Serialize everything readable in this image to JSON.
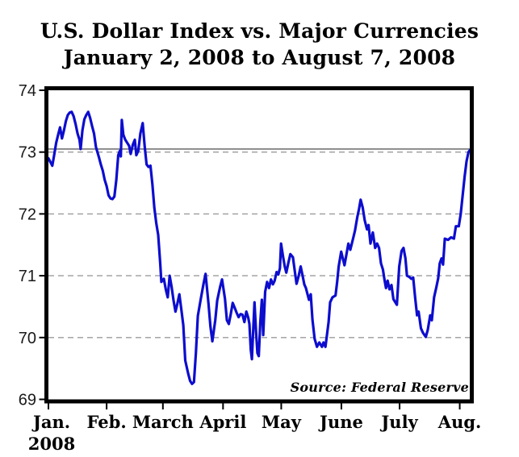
{
  "title": {
    "line1": "U.S. Dollar Index vs. Major Currencies",
    "line2": "January 2, 2008 to August 7, 2008"
  },
  "chart_data": {
    "type": "line",
    "title": "U.S. Dollar Index vs. Major Currencies",
    "subtitle": "January 2, 2008 to August 7, 2008",
    "source_note": "Source: Federal Reserve",
    "legend": "none",
    "grid": "dashed horizontal gridlines at integer values, solid gray reference line at 73.05",
    "x_axis": {
      "unit": "days from 2008-01-02",
      "start_date": "2008-01-02",
      "end_date": "2008-08-07",
      "total_days": 218,
      "tick_labels": [
        "Jan.",
        "Feb.",
        "March",
        "April",
        "May",
        "June",
        "July",
        "Aug."
      ],
      "tick_days": [
        0,
        30,
        59,
        90,
        120,
        151,
        181,
        212
      ],
      "year_label": "2008"
    },
    "y_axis": {
      "ticks": [
        69,
        70,
        71,
        72,
        73,
        74
      ],
      "range": [
        69,
        74
      ]
    },
    "gridlines": {
      "dashed_at": [
        70,
        71,
        72,
        73
      ],
      "dashed_color": "#9b9b9b",
      "solid_reference_value": 73.05,
      "solid_color": "#7f7f7f"
    },
    "colors": {
      "line": "#0d0dce",
      "border": "#000000",
      "background": "#ffffff"
    },
    "series": [
      {
        "name": "U.S. Dollar Index (major currencies)",
        "color": "#0d0dce",
        "points": [
          [
            0,
            72.9
          ],
          [
            1,
            72.84
          ],
          [
            2,
            72.78
          ],
          [
            3,
            72.96
          ],
          [
            4,
            73.15
          ],
          [
            5,
            73.28
          ],
          [
            6,
            73.4
          ],
          [
            7,
            73.22
          ],
          [
            8,
            73.35
          ],
          [
            9,
            73.5
          ],
          [
            10,
            73.6
          ],
          [
            11,
            73.64
          ],
          [
            12,
            73.65
          ],
          [
            13,
            73.58
          ],
          [
            14,
            73.45
          ],
          [
            15,
            73.3
          ],
          [
            16,
            73.2
          ],
          [
            16.6,
            73.05
          ],
          [
            17.5,
            73.35
          ],
          [
            18.5,
            73.53
          ],
          [
            19.5,
            73.6
          ],
          [
            20.5,
            73.65
          ],
          [
            21.5,
            73.55
          ],
          [
            22.5,
            73.42
          ],
          [
            23.5,
            73.3
          ],
          [
            24.5,
            73.08
          ],
          [
            26,
            72.92
          ],
          [
            27,
            72.8
          ],
          [
            28,
            72.7
          ],
          [
            29,
            72.55
          ],
          [
            30,
            72.45
          ],
          [
            31,
            72.3
          ],
          [
            32,
            72.25
          ],
          [
            33,
            72.24
          ],
          [
            34,
            72.28
          ],
          [
            35,
            72.55
          ],
          [
            36,
            72.95
          ],
          [
            36.8,
            73.02
          ],
          [
            37.3,
            72.93
          ],
          [
            37.8,
            73.52
          ],
          [
            38.6,
            73.28
          ],
          [
            39.6,
            73.2
          ],
          [
            40.6,
            73.15
          ],
          [
            41.6,
            73.1
          ],
          [
            42.4,
            72.97
          ],
          [
            43.5,
            73.12
          ],
          [
            44.5,
            73.2
          ],
          [
            45.3,
            72.95
          ],
          [
            46.3,
            73.02
          ],
          [
            47.4,
            73.3
          ],
          [
            48.6,
            73.47
          ],
          [
            49.6,
            73.1
          ],
          [
            50.6,
            72.8
          ],
          [
            51.6,
            72.76
          ],
          [
            52.6,
            72.78
          ],
          [
            53.6,
            72.48
          ],
          [
            54.6,
            72.1
          ],
          [
            55.6,
            71.85
          ],
          [
            56.6,
            71.66
          ],
          [
            57.6,
            71.2
          ],
          [
            58.2,
            70.9
          ],
          [
            59.5,
            70.95
          ],
          [
            60.5,
            70.78
          ],
          [
            61.5,
            70.65
          ],
          [
            62.5,
            71.0
          ],
          [
            63.5,
            70.82
          ],
          [
            64.5,
            70.6
          ],
          [
            65.5,
            70.42
          ],
          [
            66.5,
            70.55
          ],
          [
            67.5,
            70.7
          ],
          [
            68.5,
            70.45
          ],
          [
            69.5,
            70.2
          ],
          [
            70.5,
            69.63
          ],
          [
            72,
            69.42
          ],
          [
            73,
            69.3
          ],
          [
            74,
            69.25
          ],
          [
            75,
            69.28
          ],
          [
            76,
            69.75
          ],
          [
            77,
            70.35
          ],
          [
            78.5,
            70.62
          ],
          [
            80,
            70.88
          ],
          [
            81,
            71.03
          ],
          [
            82.5,
            70.55
          ],
          [
            83.5,
            70.18
          ],
          [
            84.5,
            69.94
          ],
          [
            86,
            70.28
          ],
          [
            87,
            70.6
          ],
          [
            88.5,
            70.82
          ],
          [
            89.5,
            70.94
          ],
          [
            91,
            70.63
          ],
          [
            92,
            70.28
          ],
          [
            93,
            70.22
          ],
          [
            94,
            70.38
          ],
          [
            95,
            70.56
          ],
          [
            96,
            70.48
          ],
          [
            97,
            70.4
          ],
          [
            98,
            70.33
          ],
          [
            99,
            70.38
          ],
          [
            100,
            70.37
          ],
          [
            101,
            70.25
          ],
          [
            102,
            70.42
          ],
          [
            103,
            70.32
          ],
          [
            103.6,
            70.22
          ],
          [
            104.3,
            69.8
          ],
          [
            104.9,
            69.65
          ],
          [
            105.6,
            70.15
          ],
          [
            106.2,
            70.57
          ],
          [
            107,
            70.1
          ],
          [
            107.7,
            69.75
          ],
          [
            108.4,
            69.7
          ],
          [
            109.2,
            70.25
          ],
          [
            110,
            70.61
          ],
          [
            110.7,
            70.04
          ],
          [
            111.7,
            70.74
          ],
          [
            112.7,
            70.9
          ],
          [
            113.7,
            70.8
          ],
          [
            114.7,
            70.94
          ],
          [
            115.7,
            70.86
          ],
          [
            116.6,
            70.92
          ],
          [
            117.6,
            71.06
          ],
          [
            118.5,
            71.02
          ],
          [
            119.3,
            71.12
          ],
          [
            119.9,
            71.52
          ],
          [
            121,
            71.3
          ],
          [
            121.8,
            71.15
          ],
          [
            122.6,
            71.05
          ],
          [
            123.6,
            71.2
          ],
          [
            124.7,
            71.35
          ],
          [
            126,
            71.3
          ],
          [
            127.2,
            71.03
          ],
          [
            127.9,
            70.87
          ],
          [
            129,
            71.0
          ],
          [
            130,
            71.15
          ],
          [
            131,
            71.0
          ],
          [
            131.9,
            70.86
          ],
          [
            132.7,
            70.8
          ],
          [
            134.3,
            70.61
          ],
          [
            135.2,
            70.7
          ],
          [
            136.1,
            70.29
          ],
          [
            137.2,
            69.98
          ],
          [
            138.4,
            69.85
          ],
          [
            139.6,
            69.92
          ],
          [
            141,
            69.85
          ],
          [
            141.8,
            69.92
          ],
          [
            142.8,
            69.85
          ],
          [
            144.4,
            70.25
          ],
          [
            145.2,
            70.57
          ],
          [
            146.4,
            70.65
          ],
          [
            148,
            70.68
          ],
          [
            148.8,
            70.9
          ],
          [
            149.6,
            71.15
          ],
          [
            150.9,
            71.39
          ],
          [
            152.6,
            71.17
          ],
          [
            154.6,
            71.52
          ],
          [
            155.6,
            71.42
          ],
          [
            157,
            71.6
          ],
          [
            158,
            71.73
          ],
          [
            159.2,
            71.95
          ],
          [
            160.1,
            72.08
          ],
          [
            160.9,
            72.23
          ],
          [
            162,
            72.1
          ],
          [
            163,
            71.9
          ],
          [
            164.2,
            71.75
          ],
          [
            165,
            71.82
          ],
          [
            166,
            71.52
          ],
          [
            167.2,
            71.7
          ],
          [
            168.4,
            71.45
          ],
          [
            169.4,
            71.52
          ],
          [
            170.4,
            71.45
          ],
          [
            171.4,
            71.2
          ],
          [
            172.4,
            71.1
          ],
          [
            173.2,
            70.94
          ],
          [
            174,
            70.8
          ],
          [
            174.8,
            70.92
          ],
          [
            175.8,
            70.78
          ],
          [
            176.8,
            70.85
          ],
          [
            177.8,
            70.62
          ],
          [
            179.6,
            70.53
          ],
          [
            180.8,
            71.15
          ],
          [
            182,
            71.4
          ],
          [
            183,
            71.45
          ],
          [
            184,
            71.28
          ],
          [
            184.8,
            71.0
          ],
          [
            186,
            70.98
          ],
          [
            187,
            70.95
          ],
          [
            188,
            70.97
          ],
          [
            189,
            70.65
          ],
          [
            190,
            70.36
          ],
          [
            190.8,
            70.42
          ],
          [
            192,
            70.15
          ],
          [
            193,
            70.08
          ],
          [
            194.5,
            70.01
          ],
          [
            195.5,
            70.12
          ],
          [
            196.8,
            70.36
          ],
          [
            197.6,
            70.28
          ],
          [
            198.8,
            70.65
          ],
          [
            200,
            70.82
          ],
          [
            200.9,
            70.96
          ],
          [
            201.7,
            71.2
          ],
          [
            202.6,
            71.28
          ],
          [
            203.4,
            71.18
          ],
          [
            204.3,
            71.6
          ],
          [
            206,
            71.58
          ],
          [
            207.5,
            71.62
          ],
          [
            209,
            71.6
          ],
          [
            210,
            71.8
          ],
          [
            211.5,
            71.8
          ],
          [
            212.5,
            72.0
          ],
          [
            213.5,
            72.3
          ],
          [
            214.5,
            72.6
          ],
          [
            215.5,
            72.85
          ],
          [
            216.5,
            73.0
          ],
          [
            217.2,
            73.03
          ],
          [
            218,
            73.05
          ]
        ]
      }
    ]
  }
}
